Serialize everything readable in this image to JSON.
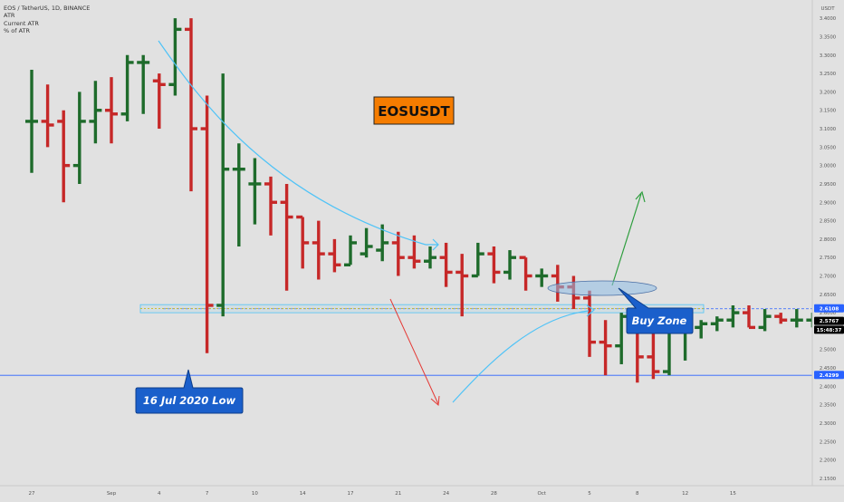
{
  "chart_data": {
    "type": "ohlc",
    "header": {
      "symbol_line": "EOS / TetherUS, 1D, BINANCE",
      "indicators": [
        "ATR",
        "Current ATR",
        "% of ATR"
      ]
    },
    "y_axis": {
      "unit_label": "USDT",
      "range": [
        2.13,
        3.43
      ],
      "ticks": [
        "3.4000",
        "3.3500",
        "3.3000",
        "3.2500",
        "3.2000",
        "3.1500",
        "3.1000",
        "3.0500",
        "3.0000",
        "2.9500",
        "2.9000",
        "2.8500",
        "2.8000",
        "2.7500",
        "2.7000",
        "2.6500",
        "2.6000",
        "2.5500",
        "2.5000",
        "2.4500",
        "2.4000",
        "2.3500",
        "2.3000",
        "2.2500",
        "2.2000",
        "2.1500"
      ],
      "price_labels": [
        {
          "text": "2.6108",
          "value": 2.6108,
          "color": "#2962ff"
        },
        {
          "text": "2.5767",
          "value": 2.5767,
          "color": "#000000"
        },
        {
          "text": "15:48:37",
          "value": 2.5575,
          "color": "#000000"
        },
        {
          "text": "2.4299",
          "value": 2.4299,
          "color": "#2962ff"
        }
      ]
    },
    "x_axis": {
      "ticks": [
        {
          "label": "27",
          "index": 0
        },
        {
          "label": "Sep",
          "index": 5
        },
        {
          "label": "4",
          "index": 8
        },
        {
          "label": "7",
          "index": 11
        },
        {
          "label": "10",
          "index": 14
        },
        {
          "label": "14",
          "index": 17
        },
        {
          "label": "17",
          "index": 20
        },
        {
          "label": "21",
          "index": 23
        },
        {
          "label": "24",
          "index": 26
        },
        {
          "label": "28",
          "index": 29
        },
        {
          "label": "Oct",
          "index": 32
        },
        {
          "label": "5",
          "index": 35
        },
        {
          "label": "8",
          "index": 38
        },
        {
          "label": "12",
          "index": 41
        },
        {
          "label": "15",
          "index": 44
        }
      ]
    },
    "ohlc": [
      {
        "o": 3.12,
        "h": 3.26,
        "l": 2.98,
        "c": 3.12
      },
      {
        "o": 3.12,
        "h": 3.22,
        "l": 3.05,
        "c": 3.11
      },
      {
        "o": 3.12,
        "h": 3.15,
        "l": 2.9,
        "c": 3.0
      },
      {
        "o": 3.0,
        "h": 3.2,
        "l": 2.95,
        "c": 3.12
      },
      {
        "o": 3.12,
        "h": 3.23,
        "l": 3.06,
        "c": 3.15
      },
      {
        "o": 3.15,
        "h": 3.24,
        "l": 3.06,
        "c": 3.14
      },
      {
        "o": 3.14,
        "h": 3.3,
        "l": 3.12,
        "c": 3.28
      },
      {
        "o": 3.28,
        "h": 3.3,
        "l": 3.14,
        "c": 3.28
      },
      {
        "o": 3.23,
        "h": 3.25,
        "l": 3.1,
        "c": 3.22
      },
      {
        "o": 3.22,
        "h": 3.4,
        "l": 3.19,
        "c": 3.37
      },
      {
        "o": 3.37,
        "h": 3.4,
        "l": 2.93,
        "c": 3.1
      },
      {
        "o": 3.1,
        "h": 3.19,
        "l": 2.49,
        "c": 2.62
      },
      {
        "o": 2.62,
        "h": 3.25,
        "l": 2.59,
        "c": 2.99
      },
      {
        "o": 2.99,
        "h": 3.06,
        "l": 2.78,
        "c": 2.99
      },
      {
        "o": 2.95,
        "h": 3.02,
        "l": 2.84,
        "c": 2.95
      },
      {
        "o": 2.95,
        "h": 2.97,
        "l": 2.81,
        "c": 2.9
      },
      {
        "o": 2.9,
        "h": 2.95,
        "l": 2.66,
        "c": 2.86
      },
      {
        "o": 2.86,
        "h": 2.86,
        "l": 2.72,
        "c": 2.79
      },
      {
        "o": 2.79,
        "h": 2.85,
        "l": 2.69,
        "c": 2.76
      },
      {
        "o": 2.76,
        "h": 2.8,
        "l": 2.71,
        "c": 2.73
      },
      {
        "o": 2.73,
        "h": 2.81,
        "l": 2.73,
        "c": 2.79
      },
      {
        "o": 2.76,
        "h": 2.83,
        "l": 2.75,
        "c": 2.78
      },
      {
        "o": 2.77,
        "h": 2.84,
        "l": 2.74,
        "c": 2.79
      },
      {
        "o": 2.79,
        "h": 2.82,
        "l": 2.7,
        "c": 2.75
      },
      {
        "o": 2.75,
        "h": 2.81,
        "l": 2.72,
        "c": 2.74
      },
      {
        "o": 2.74,
        "h": 2.78,
        "l": 2.72,
        "c": 2.75
      },
      {
        "o": 2.75,
        "h": 2.79,
        "l": 2.67,
        "c": 2.71
      },
      {
        "o": 2.71,
        "h": 2.76,
        "l": 2.59,
        "c": 2.7
      },
      {
        "o": 2.7,
        "h": 2.79,
        "l": 2.7,
        "c": 2.76
      },
      {
        "o": 2.76,
        "h": 2.78,
        "l": 2.68,
        "c": 2.71
      },
      {
        "o": 2.71,
        "h": 2.77,
        "l": 2.69,
        "c": 2.75
      },
      {
        "o": 2.75,
        "h": 2.75,
        "l": 2.66,
        "c": 2.7
      },
      {
        "o": 2.7,
        "h": 2.72,
        "l": 2.67,
        "c": 2.7
      },
      {
        "o": 2.7,
        "h": 2.73,
        "l": 2.63,
        "c": 2.67
      },
      {
        "o": 2.67,
        "h": 2.7,
        "l": 2.61,
        "c": 2.64
      },
      {
        "o": 2.64,
        "h": 2.66,
        "l": 2.48,
        "c": 2.52
      },
      {
        "o": 2.52,
        "h": 2.58,
        "l": 2.43,
        "c": 2.51
      },
      {
        "o": 2.51,
        "h": 2.6,
        "l": 2.46,
        "c": 2.59
      },
      {
        "o": 2.59,
        "h": 2.59,
        "l": 2.41,
        "c": 2.48
      },
      {
        "o": 2.48,
        "h": 2.59,
        "l": 2.42,
        "c": 2.44
      },
      {
        "o": 2.44,
        "h": 2.57,
        "l": 2.43,
        "c": 2.55
      },
      {
        "o": 2.55,
        "h": 2.57,
        "l": 2.47,
        "c": 2.56
      },
      {
        "o": 2.56,
        "h": 2.58,
        "l": 2.53,
        "c": 2.57
      },
      {
        "o": 2.57,
        "h": 2.59,
        "l": 2.55,
        "c": 2.58
      },
      {
        "o": 2.58,
        "h": 2.62,
        "l": 2.56,
        "c": 2.6
      },
      {
        "o": 2.6,
        "h": 2.62,
        "l": 2.56,
        "c": 2.56
      },
      {
        "o": 2.56,
        "h": 2.61,
        "l": 2.55,
        "c": 2.59
      },
      {
        "o": 2.59,
        "h": 2.6,
        "l": 2.57,
        "c": 2.58
      },
      {
        "o": 2.58,
        "h": 2.61,
        "l": 2.56,
        "c": 2.58
      },
      {
        "o": 2.58,
        "h": 2.6,
        "l": 2.56,
        "c": 2.58
      }
    ],
    "colors": {
      "up": "#1e6b2b",
      "down": "#c62828",
      "background": "#e1e1e1",
      "grid": "#d6d6d6",
      "horizontal_line": "#2962ff"
    },
    "annotations": {
      "symbol_label": "EOSUSDT",
      "low_callout": "16 Jul 2020 Low",
      "buy_callout": "Buy Zone"
    },
    "grid": false
  }
}
